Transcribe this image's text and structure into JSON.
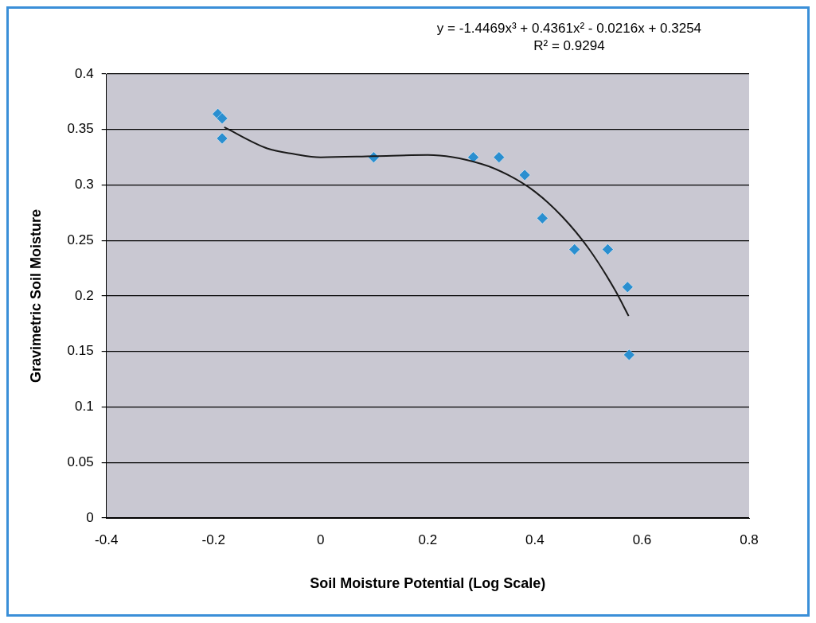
{
  "chart_data": {
    "type": "scatter",
    "xlabel": "Soil Moisture Potential (Log Scale)",
    "ylabel": "Gravimetric Soil Moisture",
    "annotations": [
      "y = -1.4469x³ + 0.4361x² - 0.0216x + 0.3254",
      "R² = 0.9294"
    ],
    "xlim": [
      -0.4,
      0.8
    ],
    "xticks": [
      -0.4,
      -0.2,
      0,
      0.2,
      0.4,
      0.6,
      0.8
    ],
    "ylim": [
      0,
      0.4
    ],
    "yticks": [
      0,
      0.05,
      0.1,
      0.15,
      0.2,
      0.25,
      0.3,
      0.35,
      0.4
    ],
    "grid": "y",
    "legend": false,
    "marker": "diamond",
    "series": [
      {
        "type": "scatter",
        "color": "#2a8fd0",
        "x": [
          -0.192,
          -0.184,
          -0.184,
          0.099,
          0.285,
          0.333,
          0.381,
          0.414,
          0.474,
          0.536,
          0.573,
          0.576
        ],
        "values": [
          0.364,
          0.36,
          0.342,
          0.325,
          0.325,
          0.325,
          0.309,
          0.27,
          0.242,
          0.242,
          0.208,
          0.147
        ]
      },
      {
        "type": "line",
        "color": "#1a1a1a",
        "marker": "none",
        "line_style": "solid",
        "x": [
          -0.18,
          -0.1,
          -0.05,
          0,
          0.1,
          0.2,
          0.3,
          0.35,
          0.4,
          0.45,
          0.5,
          0.55,
          0.575
        ],
        "values": [
          0.352,
          0.333,
          0.328,
          0.325,
          0.326,
          0.327,
          0.319,
          0.309,
          0.294,
          0.272,
          0.243,
          0.205,
          0.182
        ]
      }
    ]
  }
}
